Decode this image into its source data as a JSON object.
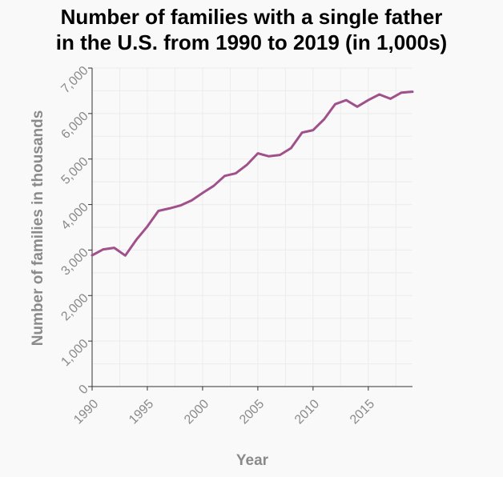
{
  "chart_data": {
    "type": "line",
    "title": "Number of families with a single father in the U.S. from 1990 to 2019 (in 1,000s)",
    "title_lines": [
      "Number of families with a single father",
      "in the U.S. from 1990 to 2019 (in 1,000s)"
    ],
    "xlabel": "Year",
    "ylabel": "Number of families in thousands",
    "xlim": [
      1990,
      2019
    ],
    "ylim": [
      0,
      7000
    ],
    "x_ticks": [
      1990,
      1995,
      2000,
      2005,
      2010,
      2015
    ],
    "y_ticks": [
      0,
      1000,
      2000,
      3000,
      4000,
      5000,
      6000,
      7000
    ],
    "y_tick_labels": [
      "0",
      "1,000",
      "2,000",
      "3,000",
      "4,000",
      "5,000",
      "6,000",
      "7,000"
    ],
    "grid": true,
    "color": "#a0508a",
    "series": [
      {
        "name": "",
        "x": [
          1990,
          1991,
          1992,
          1993,
          1994,
          1995,
          1996,
          1997,
          1998,
          1999,
          2000,
          2001,
          2002,
          2003,
          2004,
          2005,
          2006,
          2007,
          2008,
          2009,
          2010,
          2011,
          2012,
          2013,
          2014,
          2015,
          2016,
          2017,
          2018,
          2019
        ],
        "values": [
          2884,
          3015,
          3050,
          2880,
          3225,
          3520,
          3860,
          3915,
          3980,
          4090,
          4255,
          4410,
          4630,
          4685,
          4870,
          5125,
          5060,
          5090,
          5240,
          5580,
          5635,
          5875,
          6205,
          6295,
          6150,
          6295,
          6420,
          6325,
          6460,
          6480
        ]
      }
    ]
  }
}
